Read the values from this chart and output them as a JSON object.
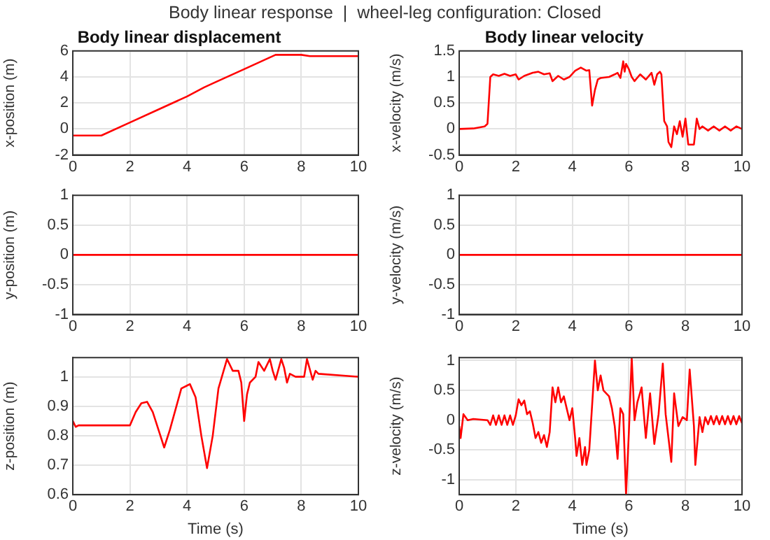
{
  "chart_data": [
    {
      "type": "other",
      "title": "Body linear response  |  wheel-leg configuration: Closed"
    },
    {
      "type": "line",
      "title": "Body linear displacement",
      "ylabel": "x-position (m)",
      "color": "#ff0000",
      "grid": true,
      "legend": false,
      "marker": "none",
      "line_style": "solid",
      "xlim": [
        0,
        10
      ],
      "xticks": [
        0,
        2,
        4,
        6,
        8,
        10
      ],
      "ylim": [
        -2,
        6
      ],
      "yticks": [
        -2,
        0,
        2,
        4,
        6
      ],
      "x": [
        0,
        1,
        2,
        3,
        4,
        4.6,
        5,
        6,
        7.1,
        8,
        8.3,
        10
      ],
      "values": [
        -0.5,
        -0.5,
        0.5,
        1.5,
        2.5,
        3.2,
        3.6,
        4.6,
        5.7,
        5.7,
        5.6,
        5.6
      ]
    },
    {
      "type": "line",
      "title": "Body linear velocity",
      "ylabel": "x-velocity (m/s)",
      "color": "#ff0000",
      "grid": true,
      "legend": false,
      "marker": "none",
      "line_style": "solid",
      "xlim": [
        0,
        10
      ],
      "xticks": [
        0,
        2,
        4,
        6,
        8,
        10
      ],
      "ylim": [
        -0.5,
        1.5
      ],
      "yticks": [
        -0.5,
        0,
        0.5,
        1,
        1.5
      ],
      "x": [
        0,
        0.5,
        0.9,
        1.0,
        1.1,
        1.2,
        1.4,
        1.6,
        1.8,
        2.0,
        2.1,
        2.3,
        2.6,
        2.8,
        3.0,
        3.2,
        3.3,
        3.5,
        3.7,
        3.9,
        4.1,
        4.3,
        4.5,
        4.6,
        4.7,
        4.8,
        4.9,
        5.0,
        5.3,
        5.5,
        5.6,
        5.7,
        5.8,
        5.85,
        5.9,
        6.0,
        6.1,
        6.2,
        6.4,
        6.6,
        6.8,
        6.9,
        7.0,
        7.1,
        7.15,
        7.25,
        7.35,
        7.4,
        7.5,
        7.6,
        7.7,
        7.8,
        7.9,
        8.0,
        8.1,
        8.2,
        8.3,
        8.4,
        8.5,
        8.6,
        8.8,
        9.0,
        9.2,
        9.4,
        9.6,
        9.8,
        10
      ],
      "values": [
        0,
        0.01,
        0.05,
        0.1,
        1.0,
        1.05,
        1.02,
        1.06,
        1.02,
        1.05,
        0.95,
        1.02,
        1.08,
        1.1,
        1.05,
        1.07,
        0.92,
        1.02,
        0.95,
        1.0,
        1.12,
        1.18,
        1.12,
        1.13,
        0.45,
        0.75,
        0.95,
        0.98,
        1.0,
        1.05,
        1.08,
        0.98,
        1.3,
        1.1,
        1.25,
        1.15,
        1.0,
        0.92,
        1.05,
        0.95,
        1.08,
        0.85,
        1.05,
        1.1,
        1.05,
        0.15,
        0.05,
        -0.25,
        -0.35,
        0.05,
        -0.1,
        0.15,
        -0.15,
        0.2,
        -0.3,
        -0.3,
        -0.3,
        0.2,
        0,
        0.05,
        -0.03,
        0.05,
        -0.03,
        0.05,
        -0.03,
        0.05,
        0
      ]
    },
    {
      "type": "line",
      "ylabel": "y-position (m)",
      "color": "#ff0000",
      "grid": true,
      "legend": false,
      "marker": "none",
      "line_style": "solid",
      "xlim": [
        0,
        10
      ],
      "xticks": [
        0,
        2,
        4,
        6,
        8,
        10
      ],
      "ylim": [
        -1,
        1
      ],
      "yticks": [
        -1,
        -0.5,
        0,
        0.5,
        1
      ],
      "x": [
        0,
        10
      ],
      "values": [
        0,
        0
      ]
    },
    {
      "type": "line",
      "ylabel": "y-velocity (m/s)",
      "color": "#ff0000",
      "grid": true,
      "legend": false,
      "marker": "none",
      "line_style": "solid",
      "xlim": [
        0,
        10
      ],
      "xticks": [
        0,
        2,
        4,
        6,
        8,
        10
      ],
      "ylim": [
        -1,
        1
      ],
      "yticks": [
        -1,
        -0.5,
        0,
        0.5,
        1
      ],
      "x": [
        0,
        10
      ],
      "values": [
        0,
        0
      ]
    },
    {
      "type": "line",
      "ylabel": "z-position (m)",
      "xlabel": "Time (s)",
      "color": "#ff0000",
      "grid": true,
      "legend": false,
      "marker": "none",
      "line_style": "solid",
      "xlim": [
        0,
        10
      ],
      "xticks": [
        0,
        2,
        4,
        6,
        8,
        10
      ],
      "ylim": [
        0.6,
        1.065
      ],
      "yticks": [
        0.6,
        0.7,
        0.8,
        0.9,
        1
      ],
      "x": [
        0,
        0.1,
        0.2,
        2.0,
        2.2,
        2.4,
        2.6,
        2.8,
        3.0,
        3.2,
        3.4,
        3.6,
        3.8,
        4.0,
        4.1,
        4.3,
        4.5,
        4.7,
        4.9,
        5.1,
        5.4,
        5.6,
        5.8,
        5.9,
        6.0,
        6.1,
        6.2,
        6.4,
        6.5,
        6.7,
        6.9,
        7.0,
        7.1,
        7.3,
        7.4,
        7.5,
        7.6,
        7.8,
        8.1,
        8.2,
        8.4,
        8.5,
        8.6,
        10
      ],
      "values": [
        0.85,
        0.83,
        0.835,
        0.835,
        0.88,
        0.91,
        0.915,
        0.88,
        0.82,
        0.76,
        0.82,
        0.89,
        0.96,
        0.97,
        0.975,
        0.93,
        0.8,
        0.69,
        0.8,
        0.96,
        1.06,
        1.02,
        1.02,
        0.98,
        0.85,
        0.94,
        0.98,
        1.0,
        1.05,
        1.02,
        1.06,
        1.02,
        0.99,
        1.06,
        1.03,
        0.98,
        1.01,
        1.0,
        1.0,
        1.06,
        0.99,
        1.02,
        1.01,
        1.0
      ]
    },
    {
      "type": "line",
      "ylabel": "z-velocity (m/s)",
      "xlabel": "Time (s)",
      "color": "#ff0000",
      "grid": true,
      "legend": false,
      "marker": "none",
      "line_style": "solid",
      "xlim": [
        0,
        10
      ],
      "xticks": [
        0,
        2,
        4,
        6,
        8,
        10
      ],
      "ylim": [
        -1.25,
        1.05
      ],
      "yticks": [
        -1,
        -0.5,
        0,
        0.5,
        1
      ],
      "x": [
        0,
        0.05,
        0.15,
        0.3,
        0.5,
        1.0,
        1.1,
        1.2,
        1.3,
        1.4,
        1.5,
        1.6,
        1.7,
        1.8,
        1.9,
        2.0,
        2.1,
        2.2,
        2.3,
        2.4,
        2.5,
        2.6,
        2.7,
        2.8,
        2.9,
        3.0,
        3.1,
        3.2,
        3.3,
        3.4,
        3.5,
        3.6,
        3.7,
        3.8,
        3.9,
        4.0,
        4.1,
        4.15,
        4.25,
        4.35,
        4.45,
        4.5,
        4.6,
        4.8,
        4.9,
        5.0,
        5.1,
        5.3,
        5.4,
        5.5,
        5.6,
        5.7,
        5.8,
        5.9,
        6.0,
        6.1,
        6.2,
        6.3,
        6.45,
        6.6,
        6.75,
        6.9,
        7.05,
        7.2,
        7.3,
        7.5,
        7.6,
        7.75,
        7.9,
        8.05,
        8.15,
        8.3,
        8.35,
        8.5,
        8.6,
        8.7,
        8.8,
        8.9,
        9.0,
        9.1,
        9.2,
        9.3,
        9.4,
        9.5,
        9.6,
        9.7,
        9.8,
        9.9,
        10
      ],
      "values": [
        -0.1,
        -0.3,
        0.1,
        0,
        0.02,
        0,
        -0.08,
        0.08,
        -0.08,
        0.08,
        -0.08,
        0.08,
        -0.08,
        0.08,
        -0.08,
        0.08,
        0.35,
        0.25,
        0.33,
        0.1,
        0.15,
        -0.05,
        -0.3,
        -0.2,
        -0.38,
        -0.25,
        -0.45,
        -0.2,
        0.55,
        0.3,
        0.55,
        0.3,
        0.4,
        0.2,
        0,
        0.2,
        -0.3,
        -0.6,
        -0.3,
        -0.75,
        -0.45,
        -0.75,
        -0.5,
        1.0,
        0.5,
        0.75,
        0.5,
        0.4,
        0.2,
        -0.1,
        -0.65,
        0.2,
        0.1,
        -1.25,
        -0.2,
        1.05,
        0,
        0.3,
        0.55,
        -0.3,
        0.45,
        -0.4,
        0.1,
        0.95,
        0.1,
        -0.7,
        0.45,
        -0.1,
        0.05,
        0,
        0.85,
        -0.1,
        -0.75,
        0.05,
        -0.2,
        0.05,
        -0.07,
        0.07,
        -0.07,
        0.07,
        -0.07,
        0.07,
        -0.07,
        0.07,
        -0.07,
        0.07,
        -0.07,
        0.07,
        -0.05
      ]
    }
  ]
}
